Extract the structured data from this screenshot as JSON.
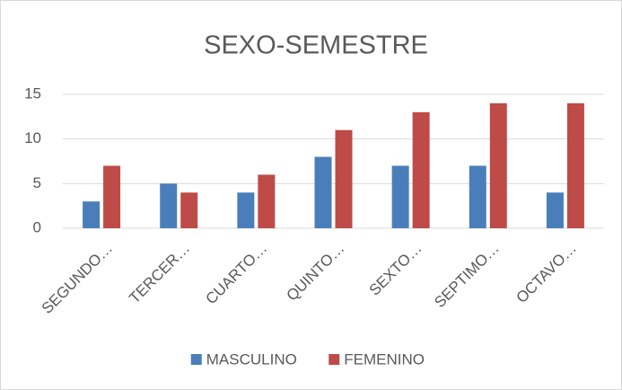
{
  "chart_data": {
    "type": "bar",
    "title": "SEXO-SEMESTRE",
    "categories": [
      "SEGUNDO…",
      "TERCER…",
      "CUARTO…",
      "QUINTO…",
      "SEXTO…",
      "SEPTIMO…",
      "OCTAVO…"
    ],
    "series": [
      {
        "name": "MASCULINO",
        "color": "#4a7ebb",
        "values": [
          3,
          5,
          4,
          8,
          7,
          7,
          4
        ]
      },
      {
        "name": "FEMENINO",
        "color": "#be4b48",
        "values": [
          7,
          4,
          6,
          11,
          13,
          14,
          14
        ]
      }
    ],
    "ylim": [
      0,
      15
    ],
    "yticks": [
      0,
      5,
      10,
      15
    ],
    "grid": true,
    "legend": "bottom"
  }
}
